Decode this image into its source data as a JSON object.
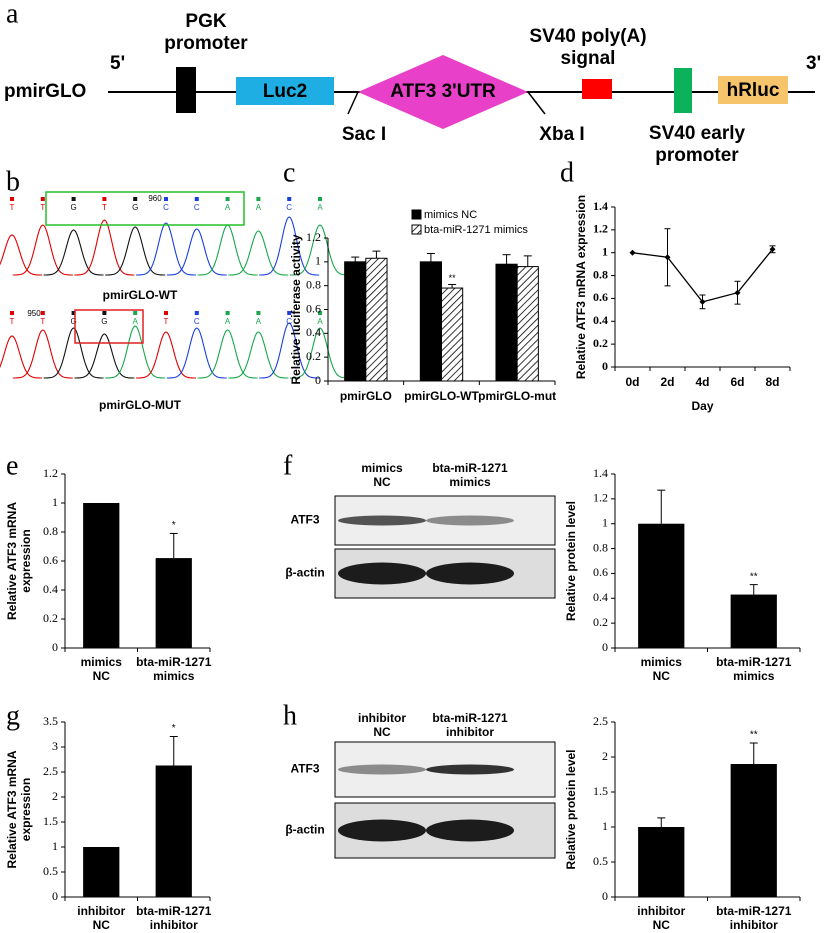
{
  "panel_labels": [
    "a",
    "b",
    "c",
    "d",
    "e",
    "f",
    "g",
    "h"
  ],
  "diagram": {
    "vector": "pmirGLO",
    "five_prime": "5'",
    "three_prime": "3'",
    "pgk": "PGK\npromoter",
    "luc2": "Luc2",
    "utr": "ATF3 3'UTR",
    "sac": "Sac I",
    "xba": "Xba I",
    "polya": "SV40 poly(A)\nsignal",
    "early": "SV40 early\npromoter",
    "hrluc": "hRluc"
  },
  "chromatograms": [
    {
      "label": "pmirGLO-WT",
      "position": "960",
      "bases": [
        "T",
        "T",
        "G",
        "T",
        "G",
        "C",
        "C",
        "A",
        "A",
        "C",
        "A"
      ]
    },
    {
      "label": "pmirGLO-MUT",
      "position": "950",
      "bases": [
        "T",
        "T",
        "G",
        "G",
        "A",
        "T",
        "C",
        "A",
        "A",
        "C",
        "A"
      ]
    }
  ],
  "blots": [
    {
      "columns": [
        "mimics\nNC",
        "bta-miR-1271\nmimics"
      ],
      "rows": [
        "ATF3",
        "β-actin"
      ]
    },
    {
      "columns": [
        "inhibitor\nNC",
        "bta-miR-1271\ninhibitor"
      ],
      "rows": [
        "ATF3",
        "β-actin"
      ]
    }
  ],
  "chart_data": [
    {
      "type": "bar",
      "ylabel": "Relative luciferase activity",
      "categories": [
        "pmirGLO",
        "pmirGLO-WT",
        "pmirGLO-mut"
      ],
      "series": [
        {
          "name": "mimics NC",
          "color": "#000000",
          "values": [
            1,
            1,
            0.98
          ],
          "errors": [
            0.04,
            0.07,
            0.08
          ],
          "annotations": [
            null,
            null,
            null
          ]
        },
        {
          "name": "bta-miR-1271 mimics",
          "color": "#000000",
          "hatch": true,
          "values": [
            1.03,
            0.78,
            0.96
          ],
          "errors": [
            0.06,
            0.03,
            0.09
          ],
          "annotations": [
            null,
            "**",
            null
          ]
        }
      ],
      "ylim": [
        0,
        1.2
      ],
      "yticks": [
        0,
        0.2,
        0.4,
        0.6,
        0.8,
        1,
        1.2
      ],
      "legend": "top"
    },
    {
      "type": "line",
      "ylabel": "Relative ATF3 mRNA expression",
      "xlabel": "Day",
      "categories": [
        "0d",
        "2d",
        "4d",
        "6d",
        "8d"
      ],
      "values": [
        1,
        0.96,
        0.57,
        0.65,
        1.03
      ],
      "errors": [
        0,
        0.25,
        0.06,
        0.1,
        0.03
      ],
      "color": "#000000",
      "ylim": [
        0,
        1.4
      ],
      "yticks": [
        0,
        0.2,
        0.4,
        0.6,
        0.8,
        1,
        1.2,
        1.4
      ]
    },
    {
      "type": "bar",
      "ylabel": "Relative ATF3 mRNA\nexpression",
      "categories": [
        "mimics\nNC",
        "bta-miR-1271\nmimics"
      ],
      "values": [
        1,
        0.62
      ],
      "errors": [
        0,
        0.17
      ],
      "annotations": [
        null,
        "*"
      ],
      "color": "#000000",
      "ylim": [
        0,
        1.2
      ],
      "yticks": [
        0,
        0.2,
        0.4,
        0.6,
        0.8,
        1,
        1.2
      ]
    },
    {
      "type": "bar",
      "ylabel": "Relative protein level",
      "categories": [
        "mimics\nNC",
        "bta-miR-1271\nmimics"
      ],
      "values": [
        1,
        0.43
      ],
      "errors": [
        0.27,
        0.08
      ],
      "annotations": [
        null,
        "**"
      ],
      "color": "#000000",
      "ylim": [
        0,
        1.4
      ],
      "yticks": [
        0,
        0.2,
        0.4,
        0.6,
        0.8,
        1,
        1.2,
        1.4
      ]
    },
    {
      "type": "bar",
      "ylabel": "Relative ATF3 mRNA\nexpression",
      "categories": [
        "inhibitor\nNC",
        "bta-miR-1271\ninhibitor"
      ],
      "values": [
        1,
        2.63
      ],
      "errors": [
        0,
        0.58
      ],
      "annotations": [
        null,
        "*"
      ],
      "color": "#000000",
      "ylim": [
        0,
        3.5
      ],
      "yticks": [
        0,
        0.5,
        1,
        1.5,
        2,
        2.5,
        3,
        3.5
      ]
    },
    {
      "type": "bar",
      "ylabel": "Relative protein level",
      "categories": [
        "inhibitor\nNC",
        "bta-miR-1271\ninhibitor"
      ],
      "values": [
        1,
        1.9
      ],
      "errors": [
        0.13,
        0.3
      ],
      "annotations": [
        null,
        "**"
      ],
      "color": "#000000",
      "ylim": [
        0,
        2.5
      ],
      "yticks": [
        0,
        0.5,
        1,
        1.5,
        2,
        2.5
      ]
    }
  ]
}
